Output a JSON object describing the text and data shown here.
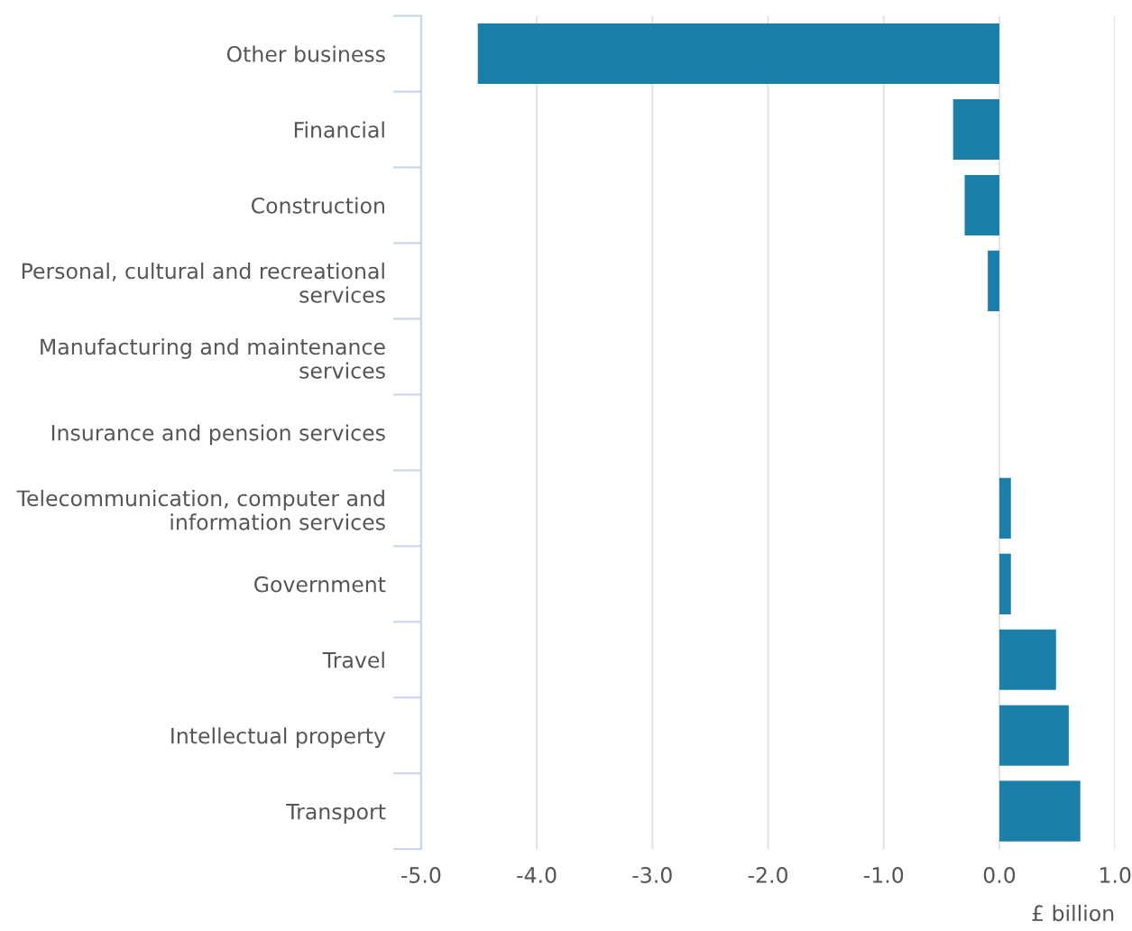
{
  "chart_data": {
    "type": "bar",
    "orientation": "horizontal",
    "categories": [
      "Other business",
      "Financial",
      "Construction",
      "Personal, cultural and recreational services",
      "Manufacturing and maintenance services",
      "Insurance and pension services",
      "Telecommunication, computer and information services",
      "Government",
      "Travel",
      "Intellectual property",
      "Transport"
    ],
    "values": [
      -4.51,
      -0.4,
      -0.3,
      -0.1,
      0,
      0,
      0.1,
      0.1,
      0.49,
      0.6,
      0.7
    ],
    "color": "#1a80aa",
    "xlim": [
      -5.0,
      1.0
    ],
    "xticks": [
      {
        "value": -5,
        "label": "-5.0"
      },
      {
        "value": -4,
        "label": "-4.0"
      },
      {
        "value": -3,
        "label": "-3.0"
      },
      {
        "value": -2,
        "label": "-2.0"
      },
      {
        "value": -1,
        "label": "-1.0"
      },
      {
        "value": 0,
        "label": "0.0"
      },
      {
        "value": 1,
        "label": "1.0"
      }
    ],
    "xlabel": "£ billion",
    "grid": "x"
  }
}
